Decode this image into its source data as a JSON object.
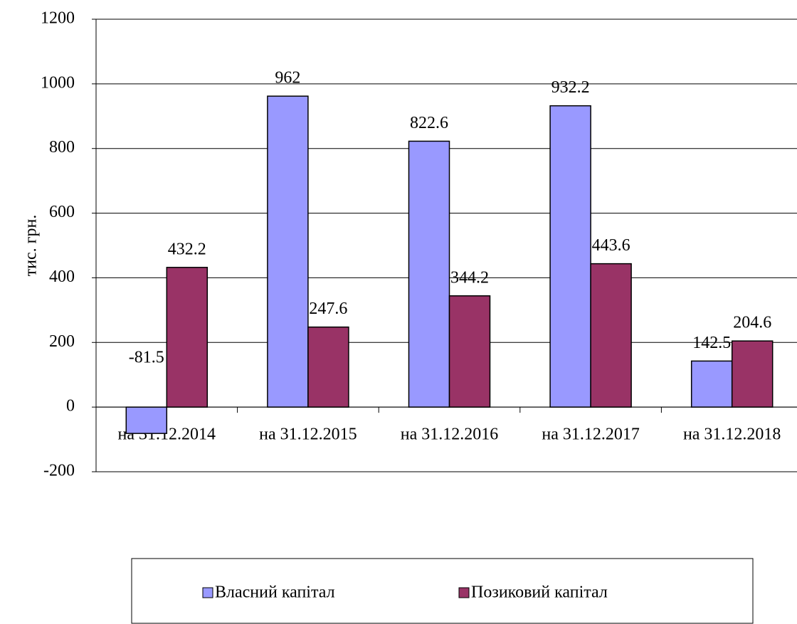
{
  "chart_data": {
    "type": "bar",
    "y_label": "тис. грн.",
    "categories": [
      "на 31.12.2014",
      "на 31.12.2015",
      "на 31.12.2016",
      "на 31.12.2017",
      "на 31.12.2018"
    ],
    "series": [
      {
        "name": "Власний капітал",
        "color": "#9999ff",
        "values": [
          -81.5,
          962,
          822.6,
          932.2,
          142.5
        ]
      },
      {
        "name": "Позиковий капітал",
        "color": "#993366",
        "values": [
          432.2,
          247.6,
          344.2,
          443.6,
          204.6
        ]
      }
    ],
    "ylim": [
      -200,
      1200
    ],
    "yticks": [
      -200,
      0,
      200,
      400,
      600,
      800,
      1000,
      1200
    ],
    "grid": true,
    "legend": "bottom"
  }
}
